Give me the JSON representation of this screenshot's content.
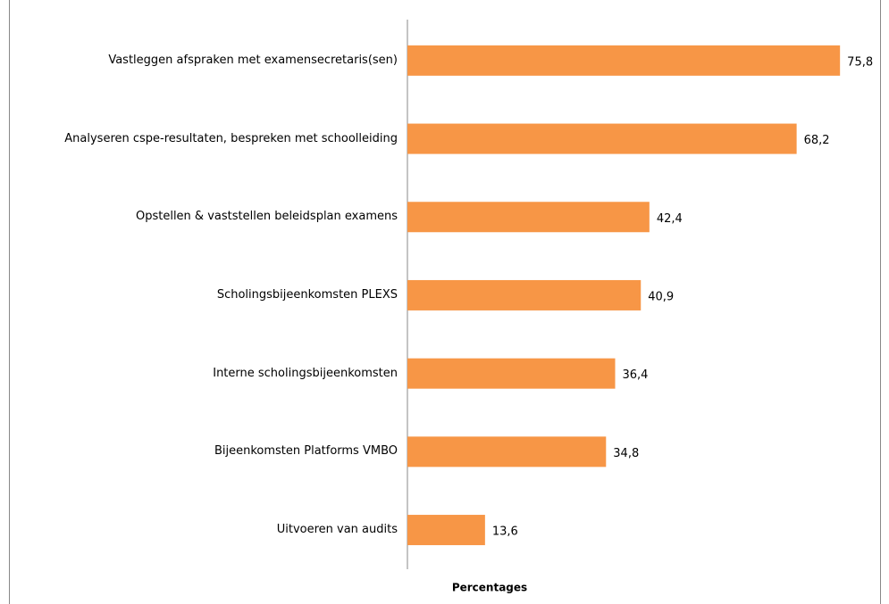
{
  "chart_data": {
    "type": "bar",
    "orientation": "horizontal",
    "x_label": "Percentages",
    "categories": [
      "Vastleggen afspraken met examensecretaris(sen)",
      "Analyseren cspe-resultaten, bespreken met schoolleiding",
      "Opstellen & vaststellen beleidsplan examens",
      "Scholingsbijeenkomsten PLEXS",
      "Interne scholingsbijeenkomsten",
      "Bijeenkomsten Platforms VMBO",
      "Uitvoeren van audits"
    ],
    "values": [
      75.8,
      68.2,
      42.4,
      40.9,
      36.4,
      34.8,
      13.6
    ],
    "value_labels": [
      "75,8",
      "68,2",
      "42,4",
      "40,9",
      "36,4",
      "34,8",
      "13,6"
    ],
    "color": "#f79646",
    "xlim": [
      0,
      80
    ]
  }
}
